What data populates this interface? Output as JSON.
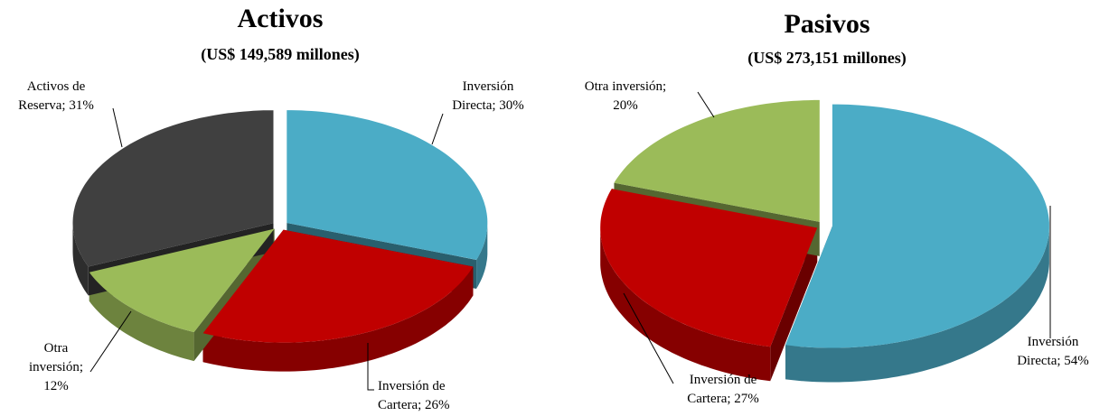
{
  "chart_data": [
    {
      "type": "pie",
      "title": "Activos",
      "subtitle": "(US$ 149,589 millones)",
      "values": [
        30,
        26,
        12,
        31
      ],
      "value_labels": [
        [
          "Inversión",
          "Directa; 30%"
        ],
        [
          "Inversión de",
          "Cartera; 26%"
        ],
        [
          "Otra",
          "inversión;",
          "12%"
        ],
        [
          "Activos de",
          "Reserva; 31%"
        ]
      ],
      "colors": [
        "#4bacc6",
        "#c00000",
        "#9bbb59",
        "#404040"
      ]
    },
    {
      "type": "pie",
      "title": "Pasivos",
      "subtitle": "(US$ 273,151 millones)",
      "values": [
        54,
        27,
        20
      ],
      "value_labels": [
        [
          "Inversión",
          "Directa; 54%"
        ],
        [
          "Inversión de",
          "Cartera; 27%"
        ],
        [
          "Otra inversión;",
          "20%"
        ]
      ],
      "colors": [
        "#4bacc6",
        "#c00000",
        "#9bbb59"
      ]
    }
  ]
}
